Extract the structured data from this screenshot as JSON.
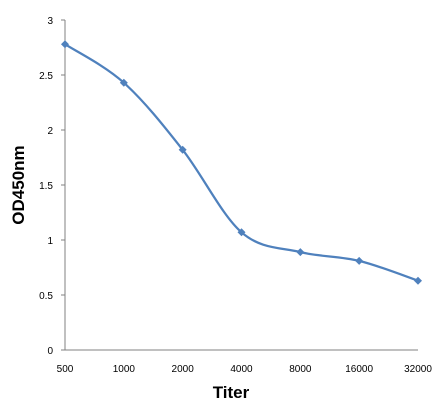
{
  "chart_data": {
    "type": "line",
    "title": "",
    "xlabel": "Titer",
    "ylabel": "OD450nm",
    "categories": [
      "500",
      "1000",
      "2000",
      "4000",
      "8000",
      "16000",
      "32000"
    ],
    "series": [
      {
        "values": [
          2.78,
          2.43,
          1.82,
          1.07,
          0.89,
          0.81,
          0.63
        ]
      }
    ],
    "ylim": [
      0,
      3
    ],
    "yticks": [
      "0",
      "0.5",
      "1",
      "1.5",
      "2",
      "2.5",
      "3"
    ],
    "grid": false,
    "legend": "none",
    "line_color": "#4F81BD",
    "marker": "diamond"
  }
}
